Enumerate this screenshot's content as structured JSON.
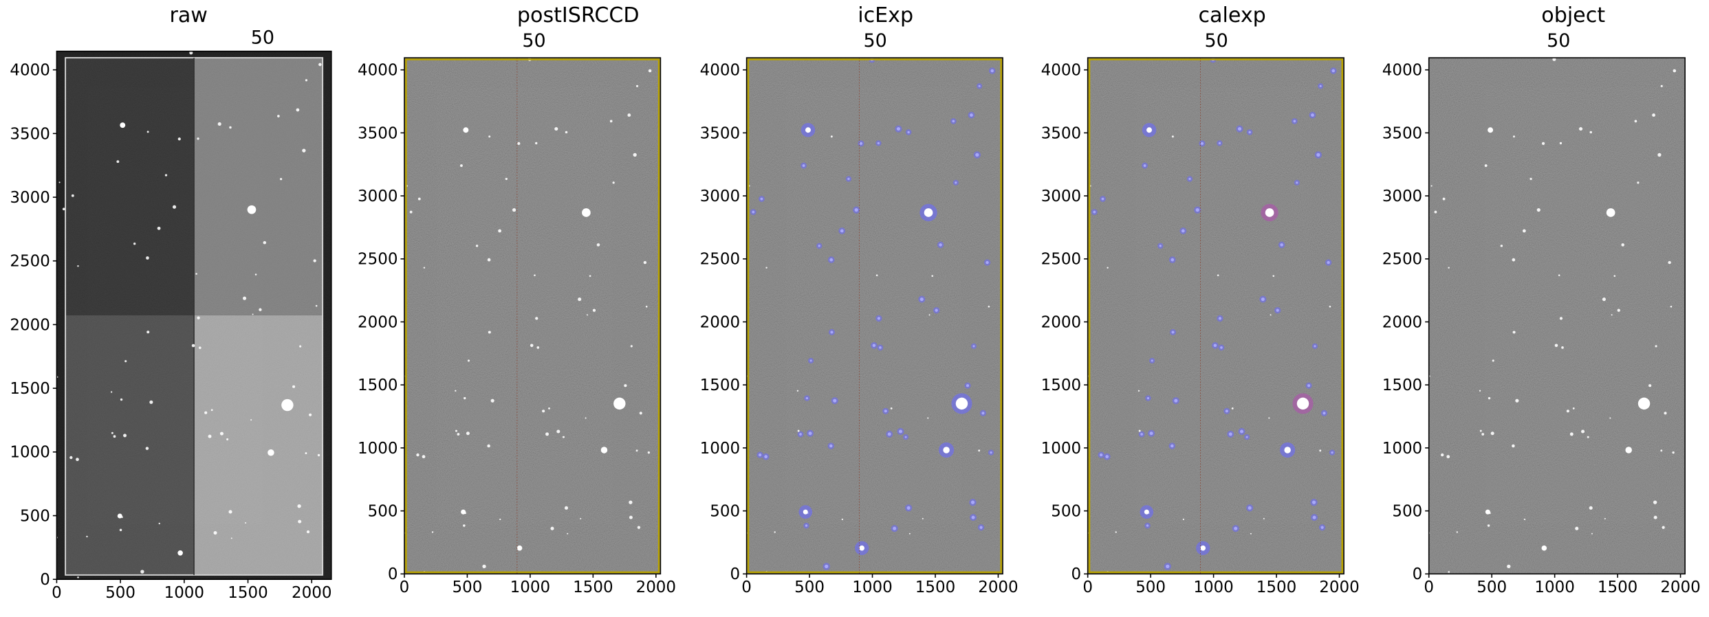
{
  "chart_data": [
    {
      "type": "image",
      "title": "raw",
      "annotation": "50",
      "xlim": [
        0,
        2154
      ],
      "ylim": [
        0,
        4146
      ],
      "xticks": [
        0,
        500,
        1000,
        1500,
        2000
      ],
      "yticks": [
        0,
        500,
        1000,
        1500,
        2000,
        2500,
        3000,
        3500,
        4000
      ]
    },
    {
      "type": "image",
      "title": "postISRCCD",
      "annotation": "50",
      "xlim": [
        0,
        2036
      ],
      "ylim": [
        0,
        4096
      ],
      "xticks": [
        0,
        500,
        1000,
        1500,
        2000
      ],
      "yticks": [
        0,
        500,
        1000,
        1500,
        2000,
        2500,
        3000,
        3500,
        4000
      ]
    },
    {
      "type": "image",
      "title": "icExp",
      "annotation": "50",
      "xlim": [
        0,
        2036
      ],
      "ylim": [
        0,
        4096
      ],
      "xticks": [
        0,
        500,
        1000,
        1500,
        2000
      ],
      "yticks": [
        0,
        500,
        1000,
        1500,
        2000,
        2500,
        3000,
        3500,
        4000
      ]
    },
    {
      "type": "image",
      "title": "calexp",
      "annotation": "50",
      "xlim": [
        0,
        2036
      ],
      "ylim": [
        0,
        4096
      ],
      "xticks": [
        0,
        500,
        1000,
        1500,
        2000
      ],
      "yticks": [
        0,
        500,
        1000,
        1500,
        2000,
        2500,
        3000,
        3500,
        4000
      ]
    },
    {
      "type": "image",
      "title": "object",
      "annotation": "50",
      "xlim": [
        0,
        2036
      ],
      "ylim": [
        0,
        4096
      ],
      "xticks": [
        0,
        500,
        1000,
        1500,
        2000
      ],
      "yticks": [
        0,
        500,
        1000,
        1500,
        2000,
        2500,
        3000,
        3500,
        4000
      ]
    }
  ]
}
